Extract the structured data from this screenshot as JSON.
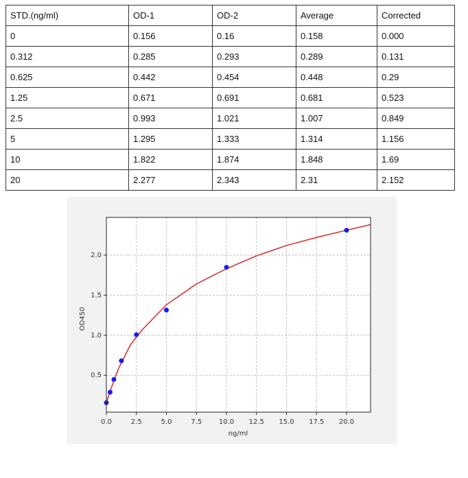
{
  "table": {
    "header": [
      "STD.(ng/ml)",
      "OD-1",
      "OD-2",
      "Average",
      "Corrected"
    ],
    "rows": [
      [
        "0",
        "0.156",
        "0.16",
        "0.158",
        "0.000"
      ],
      [
        "0.312",
        "0.285",
        "0.293",
        "0.289",
        "0.131"
      ],
      [
        "0.625",
        "0.442",
        "0.454",
        "0.448",
        "0.29"
      ],
      [
        "1.25",
        "0.671",
        "0.691",
        "0.681",
        "0.523"
      ],
      [
        "2.5",
        "0.993",
        "1.021",
        "1.007",
        "0.849"
      ],
      [
        "5",
        "1.295",
        "1.333",
        "1.314",
        "1.156"
      ],
      [
        "10",
        "1.822",
        "1.874",
        "1.848",
        "1.69"
      ],
      [
        "20",
        "2.277",
        "2.343",
        "2.31",
        "2.152"
      ]
    ]
  },
  "chart_data": {
    "type": "scatter",
    "x_label": "ng/ml",
    "y_label": "OD450",
    "xlim": [
      0,
      22
    ],
    "ylim": [
      0.04,
      2.47
    ],
    "xticks": [
      {
        "value": 0,
        "label": "0.0"
      },
      {
        "value": 2.5,
        "label": "2.5"
      },
      {
        "value": 5,
        "label": "5.0"
      },
      {
        "value": 7.5,
        "label": "7.5"
      },
      {
        "value": 10,
        "label": "10.0"
      },
      {
        "value": 12.5,
        "label": "12.5"
      },
      {
        "value": 15,
        "label": "15.0"
      },
      {
        "value": 17.5,
        "label": "17.5"
      },
      {
        "value": 20,
        "label": "20.0"
      }
    ],
    "yticks": [
      {
        "value": 0.5,
        "label": "0.5"
      },
      {
        "value": 1,
        "label": "1.0"
      },
      {
        "value": 1.5,
        "label": "1.5"
      },
      {
        "value": 2,
        "label": "2.0"
      }
    ],
    "grid": true,
    "series": [
      {
        "type": "line",
        "color": "#d62728",
        "x": [
          0,
          0.5,
          1,
          2,
          3,
          5,
          7.5,
          10,
          12.5,
          15,
          17.5,
          20,
          22
        ],
        "values": [
          0.16,
          0.38,
          0.58,
          0.88,
          1.07,
          1.38,
          1.64,
          1.83,
          1.99,
          2.12,
          2.22,
          2.31,
          2.38
        ]
      },
      {
        "type": "scatter",
        "color": "#1a1aee",
        "x": [
          0,
          0.312,
          0.625,
          1.25,
          2.5,
          5,
          10,
          20
        ],
        "values": [
          0.158,
          0.289,
          0.448,
          0.681,
          1.007,
          1.314,
          1.848,
          2.31
        ]
      }
    ]
  }
}
